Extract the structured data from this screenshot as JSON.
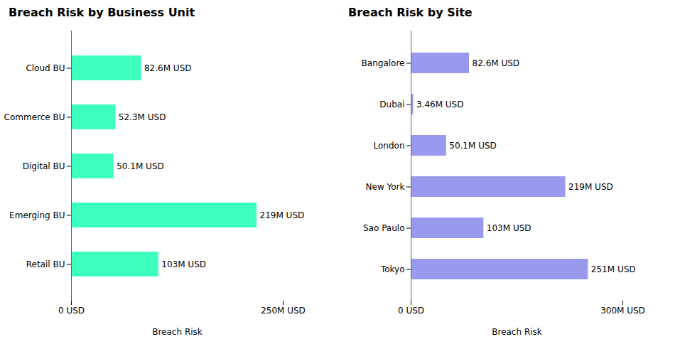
{
  "chart_data": [
    {
      "type": "bar",
      "orientation": "horizontal",
      "title": "Breach Risk by Business Unit",
      "categories": [
        "Retail BU",
        "Emerging BU",
        "Digital BU",
        "Commerce BU",
        "Cloud BU"
      ],
      "values": [
        103,
        219,
        50.1,
        52.3,
        82.6
      ],
      "value_labels": [
        "103M USD",
        "219M USD",
        "50.1M USD",
        "52.3M USD",
        "82.6M USD"
      ],
      "data_labels": true,
      "color": "#3dffc0",
      "xlim": [
        0,
        250
      ],
      "xticks": [
        {
          "value": 0,
          "label": "0 USD"
        },
        {
          "value": 250,
          "label": "250M USD"
        }
      ],
      "xlabel": "Breach Risk"
    },
    {
      "type": "bar",
      "orientation": "horizontal",
      "title": "Breach Risk by Site",
      "categories": [
        "Tokyo",
        "Sao Paulo",
        "New York",
        "London",
        "Dubai",
        "Bangalore"
      ],
      "values": [
        251,
        103,
        219,
        50.1,
        3.46,
        82.6
      ],
      "value_labels": [
        "251M USD",
        "103M USD",
        "219M USD",
        "50.1M USD",
        "3.46M USD",
        "82.6M USD"
      ],
      "data_labels": true,
      "color": "#9999ee",
      "xlim": [
        0,
        300
      ],
      "xticks": [
        {
          "value": 0,
          "label": "0 USD"
        },
        {
          "value": 300,
          "label": "300M USD"
        }
      ],
      "xlabel": "Breach Risk"
    }
  ]
}
